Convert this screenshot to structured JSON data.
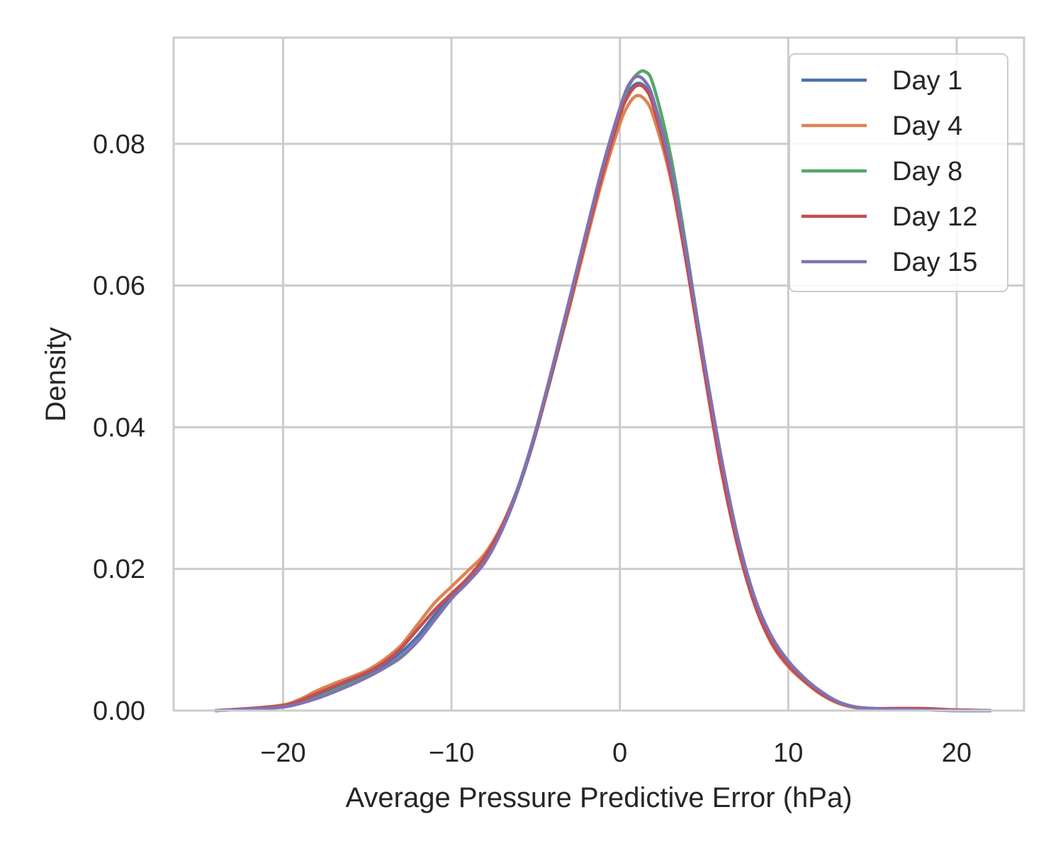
{
  "chart_data": {
    "type": "line",
    "xlabel": "Average Pressure Predictive Error (hPa)",
    "ylabel": "Density",
    "xlim": [
      -26.5,
      24.0
    ],
    "ylim": [
      0.0,
      0.095
    ],
    "x_ticks": [
      -20,
      -10,
      0,
      10,
      20
    ],
    "x_tick_labels": [
      "−20",
      "−10",
      "0",
      "10",
      "20"
    ],
    "y_ticks": [
      0.0,
      0.02,
      0.04,
      0.06,
      0.08
    ],
    "y_tick_labels": [
      "0.00",
      "0.02",
      "0.04",
      "0.06",
      "0.08"
    ],
    "grid": true,
    "legend_position": "top-right",
    "x": [
      -24,
      -22,
      -20,
      -19,
      -18,
      -17,
      -16,
      -15,
      -14,
      -13,
      -12,
      -11,
      -10,
      -9,
      -8,
      -7,
      -6,
      -5,
      -4,
      -3,
      -2,
      -1,
      0,
      0.5,
      1,
      1.5,
      2,
      3,
      4,
      5,
      6,
      7,
      8,
      9,
      10,
      11,
      12,
      13,
      14,
      15,
      16,
      18,
      20,
      22
    ],
    "series": [
      {
        "name": "Day 1",
        "color": "#4c72b0",
        "values": [
          0.0,
          0.0002,
          0.0006,
          0.0012,
          0.0022,
          0.0032,
          0.0042,
          0.0052,
          0.0065,
          0.0082,
          0.0105,
          0.0135,
          0.0162,
          0.0185,
          0.0212,
          0.0255,
          0.0315,
          0.039,
          0.048,
          0.0575,
          0.067,
          0.0765,
          0.0845,
          0.0872,
          0.0885,
          0.088,
          0.0855,
          0.0762,
          0.0632,
          0.0488,
          0.0352,
          0.0238,
          0.0155,
          0.0098,
          0.0065,
          0.0042,
          0.0025,
          0.0012,
          0.0005,
          0.0003,
          0.0002,
          0.0001,
          0.0,
          0.0
        ]
      },
      {
        "name": "Day 4",
        "color": "#dd8452",
        "values": [
          0.0,
          0.0003,
          0.0008,
          0.0016,
          0.0028,
          0.0038,
          0.0047,
          0.0057,
          0.0072,
          0.0092,
          0.0122,
          0.0152,
          0.0175,
          0.0198,
          0.0222,
          0.0262,
          0.0318,
          0.0392,
          0.0478,
          0.0568,
          0.0662,
          0.0752,
          0.0828,
          0.0855,
          0.0868,
          0.0862,
          0.0838,
          0.0752,
          0.0625,
          0.0482,
          0.0345,
          0.0232,
          0.015,
          0.0095,
          0.0062,
          0.004,
          0.0022,
          0.001,
          0.0004,
          0.0003,
          0.0002,
          0.0002,
          0.0001,
          0.0
        ]
      },
      {
        "name": "Day 8",
        "color": "#55a868",
        "values": [
          0.0,
          0.0002,
          0.0005,
          0.001,
          0.0018,
          0.0028,
          0.0038,
          0.0048,
          0.006,
          0.0075,
          0.0098,
          0.0128,
          0.0158,
          0.0185,
          0.0215,
          0.0258,
          0.0318,
          0.0392,
          0.0478,
          0.0572,
          0.0668,
          0.0765,
          0.0848,
          0.088,
          0.0898,
          0.0902,
          0.0882,
          0.0785,
          0.0645,
          0.049,
          0.035,
          0.0238,
          0.0158,
          0.0102,
          0.0068,
          0.0043,
          0.0025,
          0.0012,
          0.0005,
          0.0003,
          0.0002,
          0.0001,
          0.0,
          0.0
        ]
      },
      {
        "name": "Day 12",
        "color": "#c44e52",
        "values": [
          0.0,
          0.0003,
          0.0007,
          0.0014,
          0.0024,
          0.0034,
          0.0044,
          0.0054,
          0.0068,
          0.0088,
          0.0115,
          0.0142,
          0.0165,
          0.0188,
          0.0218,
          0.026,
          0.0318,
          0.0392,
          0.048,
          0.0572,
          0.0668,
          0.076,
          0.084,
          0.0868,
          0.0882,
          0.0878,
          0.0852,
          0.0758,
          0.0625,
          0.048,
          0.0342,
          0.0232,
          0.015,
          0.0096,
          0.0064,
          0.0041,
          0.0023,
          0.0011,
          0.0005,
          0.0003,
          0.0003,
          0.0003,
          0.0001,
          0.0
        ]
      },
      {
        "name": "Day 15",
        "color": "#8172b3",
        "values": [
          0.0,
          0.0002,
          0.0005,
          0.001,
          0.0017,
          0.0026,
          0.0036,
          0.0047,
          0.006,
          0.0076,
          0.0098,
          0.0128,
          0.0158,
          0.0182,
          0.021,
          0.0255,
          0.0318,
          0.0395,
          0.0485,
          0.058,
          0.0676,
          0.077,
          0.085,
          0.0882,
          0.0895,
          0.0888,
          0.0862,
          0.077,
          0.064,
          0.0495,
          0.036,
          0.0245,
          0.016,
          0.0105,
          0.007,
          0.0045,
          0.0026,
          0.0012,
          0.0005,
          0.0003,
          0.0002,
          0.0001,
          0.0,
          0.0
        ]
      }
    ]
  }
}
